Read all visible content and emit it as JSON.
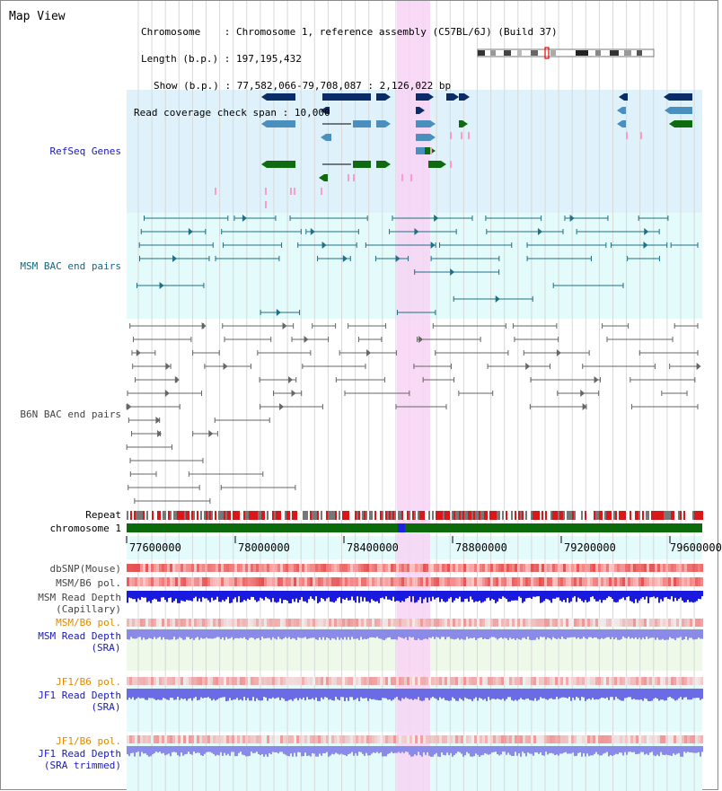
{
  "title": "Map View",
  "info": {
    "chromosome_label": "Chromosome",
    "chromosome_value": "Chromosome 1, reference assembly (C57BL/6J) (Build 37)",
    "length_label": "Length (b.p.)",
    "length_value": "197,195,432",
    "show_label": "Show (b.p.)",
    "show_value": "77,582,066-79,708,087 : 2,126,022 bp",
    "coverage_label": "Read coverage check span",
    "coverage_value": "10,000"
  },
  "tracks": {
    "refseq": "RefSeq Genes",
    "msm_bac": "MSM BAC end pairs",
    "b6n_bac": "B6N BAC end pairs",
    "repeat": "Repeat",
    "chromosome": "chromosome 1",
    "dbsnp": "dbSNP(Mouse)",
    "msm_b6_pol": "MSM/B6 pol.",
    "msm_read_depth_cap_1": "MSM Read Depth",
    "msm_read_depth_cap_2": "(Capillary)",
    "msm_b6_pol_2": "MSM/B6 pol.",
    "msm_read_depth_sra_1": "MSM Read Depth",
    "msm_read_depth_sra_2": "(SRA)",
    "jf1_b6_pol": "JF1/B6 pol.",
    "jf1_read_depth_sra_1": "JF1 Read Depth",
    "jf1_read_depth_sra_2": "(SRA)",
    "jf1_b6_pol_2": "JF1/B6 pol.",
    "jf1_read_depth_trim_1": "JF1 Read Depth",
    "jf1_read_depth_trim_2": "(SRA trimmed)"
  },
  "axis": {
    "ticks": [
      "77600000",
      "78000000",
      "78400000",
      "78800000",
      "79200000",
      "79600000"
    ]
  },
  "colors": {
    "refseq_bg": "#dff2fb",
    "msm_bg": "#e3fbfb",
    "highlight": "#f8d4f4",
    "dark_blue": "#0a2d68",
    "mid_blue": "#4a8fbe",
    "green": "#0f6b0f",
    "pink": "#f4a0c8",
    "teal": "#1f6f86",
    "gray": "#666666",
    "chrom_green": "#0b6b0b"
  }
}
